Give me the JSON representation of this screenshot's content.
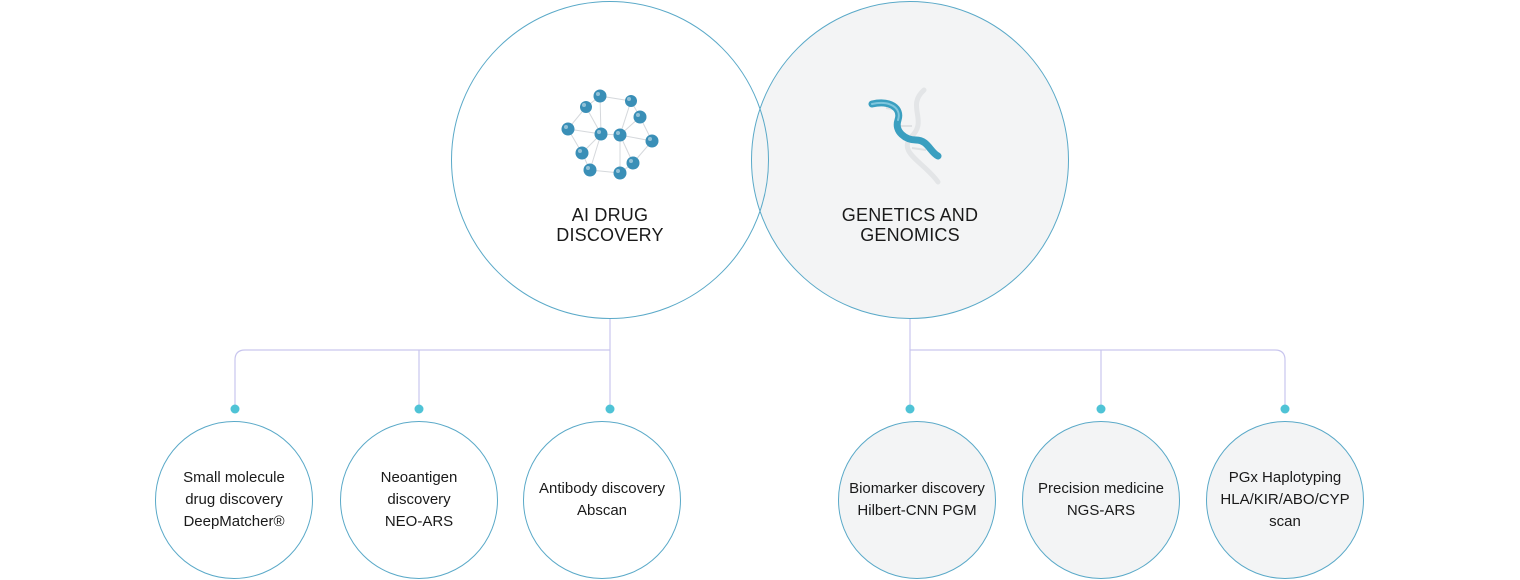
{
  "categories": [
    {
      "title": "AI DRUG\nDISCOVERY",
      "icon": "molecule-icon"
    },
    {
      "title": "GENETICS AND\nGENOMICS",
      "icon": "dna-helix-icon"
    }
  ],
  "products": [
    {
      "label": "Small molecule\ndrug discovery\nDeepMatcher®"
    },
    {
      "label": "Neoantigen\ndiscovery\nNEO-ARS"
    },
    {
      "label": "Antibody discovery\nAbscan"
    },
    {
      "label": "Biomarker discovery\nHilbert-CNN PGM"
    },
    {
      "label": "Precision medicine\nNGS-ARS"
    },
    {
      "label": "PGx Haplotyping\nHLA/KIR/ABO/CYP\nscan"
    }
  ],
  "colors": {
    "circle_border": "#5aa9c8",
    "connector": "#c9c6ee",
    "dot": "#4fc3d6",
    "shaded_fill": "#f3f4f5",
    "molecule_node": "#3a8fb7",
    "dna": "#3a9fc0"
  }
}
